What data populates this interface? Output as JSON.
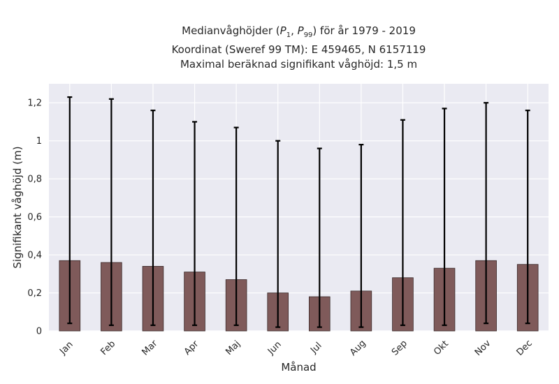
{
  "chart_data": {
    "type": "bar",
    "title_parts": {
      "line1_prefix": "Medianvåghöjder (",
      "p_low": "P",
      "p_low_sub": "1",
      "separator": ", ",
      "p_high": "P",
      "p_high_sub": "99",
      "line1_suffix": ") för år 1979 - 2019"
    },
    "subtitle_lines": [
      "Koordinat (Sweref 99 TM): E 459465, N 6157119",
      "Maximal beräknad signifikant våghöjd: 1,5 m"
    ],
    "xlabel": "Månad",
    "ylabel": "Signifikant våghöjd (m)",
    "categories": [
      "Jan",
      "Feb",
      "Mar",
      "Apr",
      "Maj",
      "Jun",
      "Jul",
      "Aug",
      "Sep",
      "Okt",
      "Nov",
      "Dec"
    ],
    "series": [
      {
        "values": [
          0.37,
          0.36,
          0.34,
          0.31,
          0.27,
          0.2,
          0.18,
          0.21,
          0.28,
          0.33,
          0.37,
          0.35
        ],
        "lower": [
          0.04,
          0.03,
          0.03,
          0.03,
          0.03,
          0.02,
          0.02,
          0.02,
          0.03,
          0.03,
          0.04,
          0.04
        ],
        "upper": [
          1.23,
          1.22,
          1.16,
          1.1,
          1.07,
          1.0,
          0.96,
          0.98,
          1.11,
          1.17,
          1.2,
          1.16
        ]
      }
    ],
    "ylim": [
      0,
      1.3
    ],
    "yticks": [
      0,
      0.2,
      0.4,
      0.6,
      0.8,
      1.0,
      1.2
    ],
    "ytick_labels": [
      "0",
      "0,2",
      "0,4",
      "0,6",
      "0,8",
      "1",
      "1,2"
    ],
    "grid": true,
    "colors": {
      "bar": "#7f5a5a",
      "bar_edge": "#3a2a2a",
      "background": "#eaeaf2",
      "grid": "#ffffff",
      "error": "#000000"
    }
  }
}
